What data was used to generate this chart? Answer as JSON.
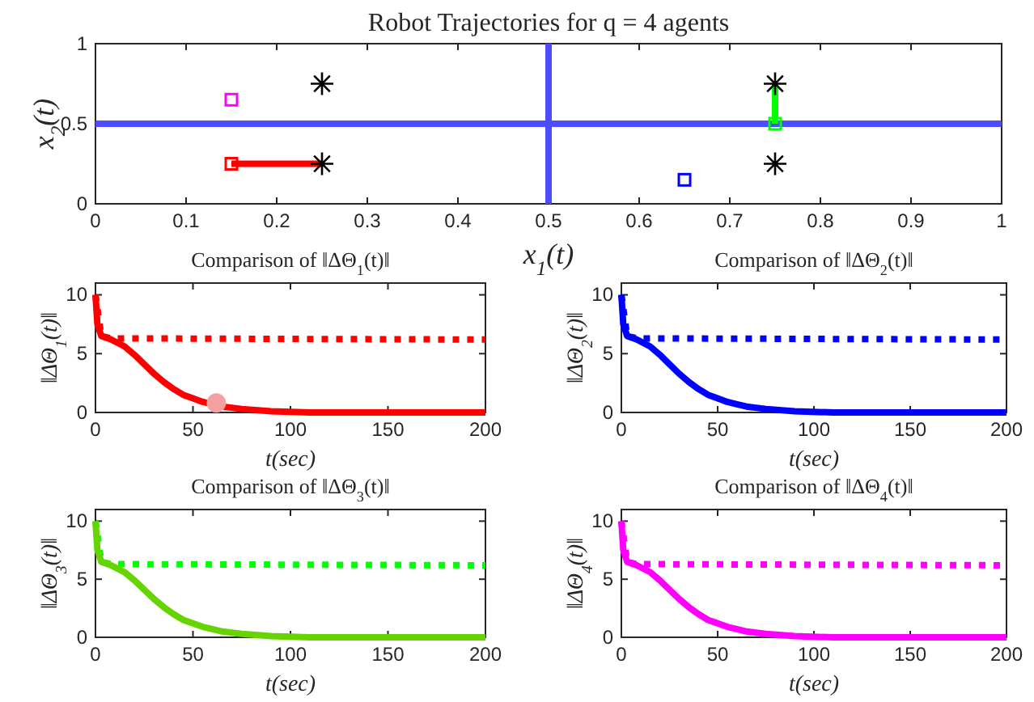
{
  "chart_data": [
    {
      "type": "scatter",
      "title": "Robot Trajectories for q = 4 agents",
      "xlabel": "x$_{1}$(t)",
      "ylabel": "x$_{2}$(t)",
      "xlim": [
        0,
        1
      ],
      "ylim": [
        0,
        1
      ],
      "xticks": [
        0,
        0.1,
        0.2,
        0.3,
        0.4,
        0.5,
        0.6,
        0.7,
        0.8,
        0.9,
        1
      ],
      "yticks": [
        0,
        0.5,
        1
      ],
      "series": [
        {
          "type": "line",
          "color": "#4d4dff",
          "x": [
            0.5,
            0.5
          ],
          "values": [
            0,
            1
          ],
          "marker": "none"
        },
        {
          "type": "line",
          "color": "#4d4dff",
          "x": [
            0,
            1
          ],
          "values": [
            0.5,
            0.5
          ],
          "marker": "none"
        },
        {
          "type": "line",
          "color": "#ff0000",
          "x": [
            0.15,
            0.25
          ],
          "values": [
            0.25,
            0.25
          ],
          "marker": "none"
        },
        {
          "type": "line",
          "color": "#00ff00",
          "x": [
            0.75,
            0.75
          ],
          "values": [
            0.5,
            0.75
          ],
          "marker": "none"
        },
        {
          "type": "scatter",
          "color": "#000000",
          "x": [
            0.25,
            0.25,
            0.75,
            0.75
          ],
          "values": [
            0.25,
            0.75,
            0.25,
            0.75
          ],
          "marker": "cross"
        },
        {
          "type": "scatter",
          "colors": [
            "#ff0000",
            "#00ff00",
            "#0000ff",
            "#ff00ff"
          ],
          "x": [
            0.15,
            0.75,
            0.65,
            0.15
          ],
          "values": [
            0.25,
            0.5,
            0.15,
            0.65
          ],
          "marker": "square"
        }
      ]
    },
    {
      "type": "line",
      "title": "Comparison of ‖ΔΘ$_{1}$(t)‖",
      "xlabel": "t(sec)",
      "ylabel": "‖ΔΘ$_{1}$(t)‖",
      "xlim": [
        0,
        200
      ],
      "ylim": [
        0,
        11
      ],
      "xticks": [
        0,
        50,
        100,
        150,
        200
      ],
      "yticks": [
        0,
        5,
        10
      ],
      "series": [
        {
          "color": "#ff0000",
          "line_style": "dotted",
          "x": [
            0,
            3,
            8,
            200
          ],
          "values": [
            10,
            6.5,
            6.3,
            6.2
          ]
        },
        {
          "color": "#ff0000",
          "line_style": "solid",
          "x": [
            0,
            1,
            3,
            8,
            15,
            20,
            25,
            30,
            35,
            40,
            45,
            50,
            55,
            60,
            65,
            75,
            90,
            110,
            150,
            200
          ],
          "values": [
            10,
            7.5,
            6.5,
            6.2,
            5.6,
            4.9,
            4.1,
            3.3,
            2.6,
            2.0,
            1.5,
            1.2,
            0.9,
            0.7,
            0.5,
            0.3,
            0.1,
            0,
            0,
            0
          ]
        },
        {
          "type": "scatter",
          "color": "#f4a0a0",
          "marker": "circle",
          "x": [
            62
          ],
          "values": [
            0.8
          ]
        }
      ]
    },
    {
      "type": "line",
      "title": "Comparison of ‖ΔΘ$_{2}$(t)‖",
      "xlabel": "t(sec)",
      "ylabel": "‖ΔΘ$_{2}$(t)‖",
      "xlim": [
        0,
        200
      ],
      "ylim": [
        0,
        11
      ],
      "xticks": [
        0,
        50,
        100,
        150,
        200
      ],
      "yticks": [
        0,
        5,
        10
      ],
      "series": [
        {
          "color": "#0000ff",
          "line_style": "dotted",
          "x": [
            0,
            3,
            8,
            200
          ],
          "values": [
            10,
            6.5,
            6.3,
            6.2
          ]
        },
        {
          "color": "#0000ff",
          "line_style": "solid",
          "x": [
            0,
            1,
            3,
            8,
            15,
            20,
            25,
            30,
            35,
            40,
            45,
            50,
            55,
            60,
            65,
            75,
            90,
            110,
            150,
            200
          ],
          "values": [
            10,
            7.5,
            6.5,
            6.2,
            5.6,
            4.9,
            4.1,
            3.3,
            2.6,
            2.0,
            1.5,
            1.2,
            0.9,
            0.7,
            0.5,
            0.3,
            0.1,
            0,
            0,
            0
          ]
        }
      ]
    },
    {
      "type": "line",
      "title": "Comparison of ‖ΔΘ$_{3}$(t)‖",
      "xlabel": "t(sec)",
      "ylabel": "‖ΔΘ$_{3}$(t)‖",
      "xlim": [
        0,
        200
      ],
      "ylim": [
        0,
        11
      ],
      "xticks": [
        0,
        50,
        100,
        150,
        200
      ],
      "yticks": [
        0,
        5,
        10
      ],
      "series": [
        {
          "color": "#00ff00",
          "line_style": "dotted",
          "x": [
            0,
            3,
            8,
            200
          ],
          "values": [
            10,
            6.5,
            6.3,
            6.2
          ]
        },
        {
          "color": "#66d400",
          "line_style": "solid",
          "x": [
            0,
            1,
            3,
            8,
            15,
            20,
            25,
            30,
            35,
            40,
            45,
            50,
            55,
            60,
            65,
            75,
            90,
            110,
            150,
            200
          ],
          "values": [
            10,
            7.5,
            6.5,
            6.2,
            5.6,
            4.9,
            4.1,
            3.3,
            2.6,
            2.0,
            1.5,
            1.2,
            0.9,
            0.7,
            0.5,
            0.3,
            0.1,
            0,
            0,
            0
          ]
        }
      ]
    },
    {
      "type": "line",
      "title": "Comparison of ‖ΔΘ$_{4}$(t)‖",
      "xlabel": "t(sec)",
      "ylabel": "‖ΔΘ$_{4}$(t)‖",
      "xlim": [
        0,
        200
      ],
      "ylim": [
        0,
        11
      ],
      "xticks": [
        0,
        50,
        100,
        150,
        200
      ],
      "yticks": [
        0,
        5,
        10
      ],
      "series": [
        {
          "color": "#ff00ff",
          "line_style": "dotted",
          "x": [
            0,
            3,
            8,
            200
          ],
          "values": [
            10,
            6.5,
            6.3,
            6.2
          ]
        },
        {
          "color": "#ff00ff",
          "line_style": "solid",
          "x": [
            0,
            1,
            3,
            8,
            15,
            20,
            25,
            30,
            35,
            40,
            45,
            50,
            55,
            60,
            65,
            75,
            90,
            110,
            150,
            200
          ],
          "values": [
            10,
            7.5,
            6.5,
            6.2,
            5.6,
            4.9,
            4.1,
            3.3,
            2.6,
            2.0,
            1.5,
            1.2,
            0.9,
            0.7,
            0.5,
            0.3,
            0.1,
            0,
            0,
            0
          ]
        }
      ]
    }
  ]
}
